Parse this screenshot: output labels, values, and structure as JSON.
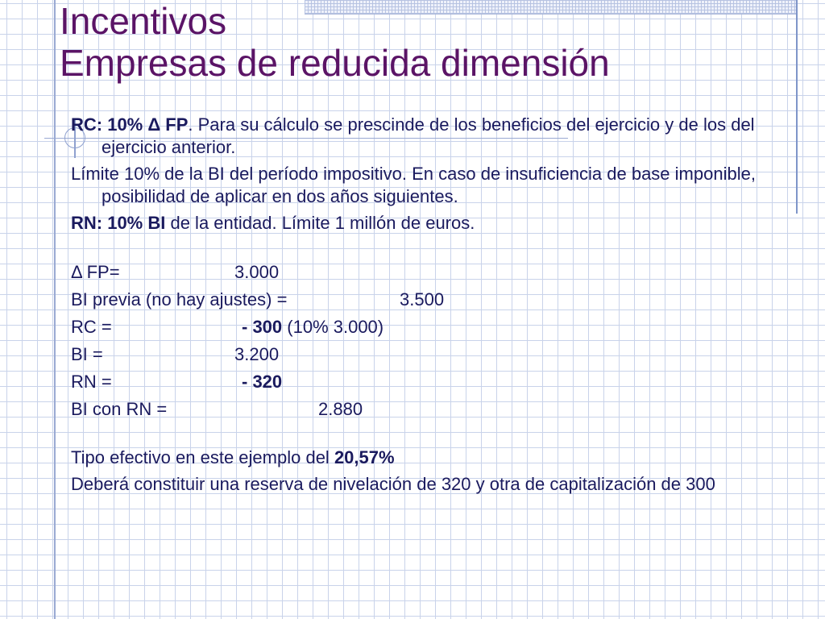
{
  "title": {
    "line1": "Incentivos",
    "line2": "Empresas de reducida dimensión"
  },
  "bullets": [
    {
      "bold": "RC: 10% Δ FP",
      "text": ". Para su cálculo se prescinde de los beneficios del ejercicio y de los del ejercicio anterior."
    },
    {
      "bold": "",
      "text": "Límite 10% de la BI del período impositivo. En caso de insuficiencia de base imponible, posibilidad de aplicar en dos años siguientes."
    },
    {
      "bold": "RN: 10% BI",
      "text": " de la entidad. Límite 1 millón de euros."
    }
  ],
  "calc": {
    "fp": {
      "label": "Δ FP=",
      "value": "3.000"
    },
    "bi_previa": {
      "label": "BI previa (no hay ajustes) =",
      "value": "3.500"
    },
    "rc": {
      "label": "RC =",
      "value_bold": "- 300",
      "value_rest": " (10% 3.000)"
    },
    "bi": {
      "label": "BI =",
      "value": "3.200"
    },
    "rn": {
      "label": "RN =",
      "value_bold": "- 320"
    },
    "bi_rn": {
      "label": "BI con RN =",
      "value": "2.880"
    }
  },
  "conclusion": {
    "tipo_text": "Tipo efectivo en este ejemplo del ",
    "tipo_value": "20,57%",
    "reserva_text": "Deberá constituir una reserva de nivelación de 320 y otra de capitalización de 300"
  }
}
